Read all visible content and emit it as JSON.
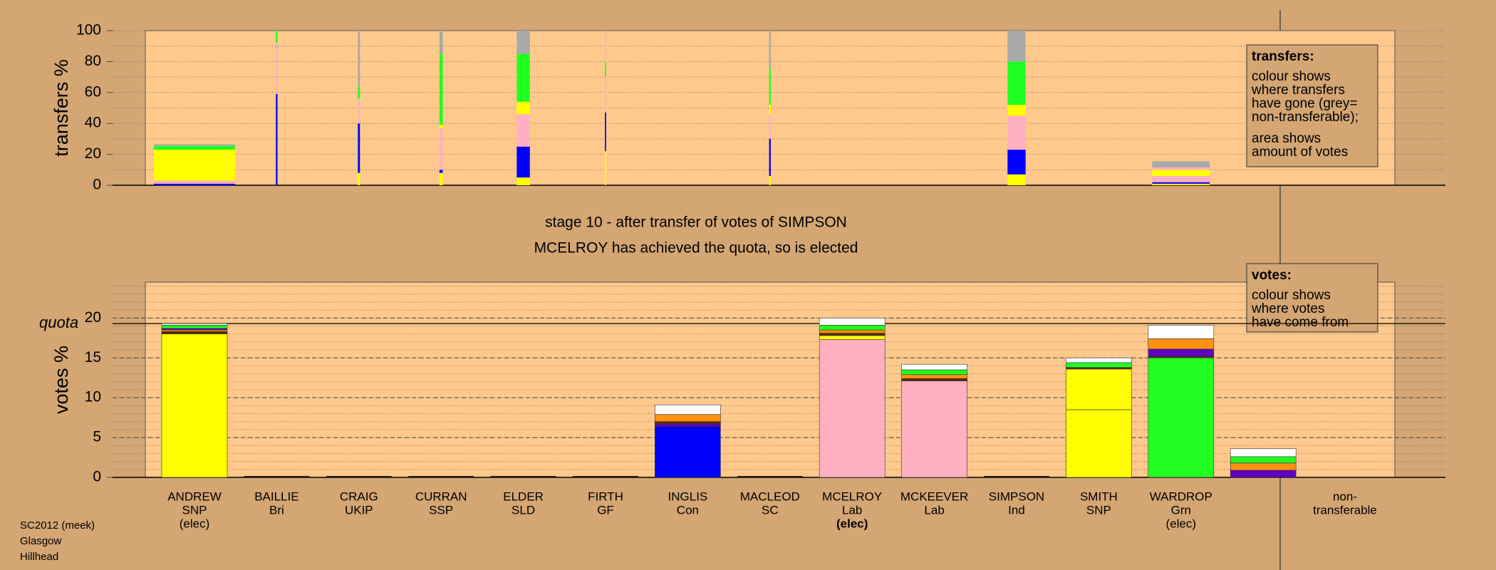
{
  "title": "stage 10 - after transfer of votes of SIMPSON",
  "subtitle": "MCELROY has achieved the quota, so is elected",
  "footer": [
    "SC2012 (meek)",
    "Glasgow",
    "Hillhead"
  ],
  "chart_data": [
    {
      "type": "stacked-bar-width",
      "ylabel": "transfers %",
      "ylim": [
        0,
        100
      ],
      "yticks": [
        0,
        20,
        40,
        60,
        80,
        100
      ],
      "grid": true,
      "minor_grid_step": 10,
      "note": {
        "title": "transfers:",
        "paragraphs": [
          [
            "colour shows",
            "where transfers",
            "have gone (grey=",
            "non-transferable);"
          ],
          [
            "area shows",
            "amount of votes"
          ]
        ]
      },
      "transfer_widths": [
        0.99,
        0.02,
        0.025,
        0.04,
        0.16,
        0.015,
        0,
        0.02,
        0,
        0,
        0.22,
        0,
        0.7,
        0
      ],
      "segments": [
        [
          {
            "color": "#0000ff",
            "value": 1
          },
          {
            "color": "#ffb0c0",
            "value": 2
          },
          {
            "color": "#ffff00",
            "value": 20
          },
          {
            "color": "#20ff20",
            "value": 2.5
          },
          {
            "color": "#a9a9a9",
            "value": 1
          }
        ],
        [
          {
            "color": "#0000ff",
            "value": 59
          },
          {
            "color": "#ffb0c0",
            "value": 33
          },
          {
            "color": "#20ff20",
            "value": 8
          }
        ],
        [
          {
            "color": "#ffff00",
            "value": 8
          },
          {
            "color": "#0000ff",
            "value": 32
          },
          {
            "color": "#ffb0c0",
            "value": 16
          },
          {
            "color": "#20ff20",
            "value": 8
          },
          {
            "color": "#a9a9a9",
            "value": 36
          }
        ],
        [
          {
            "color": "#ffff00",
            "value": 8
          },
          {
            "color": "#0000ff",
            "value": 2
          },
          {
            "color": "#ffb0c0",
            "value": 27
          },
          {
            "color": "#ffff00",
            "value": 2
          },
          {
            "color": "#20ff20",
            "value": 46
          },
          {
            "color": "#a9a9a9",
            "value": 15
          }
        ],
        [
          {
            "color": "#ffff00",
            "value": 5
          },
          {
            "color": "#0000ff",
            "value": 20
          },
          {
            "color": "#ffb0c0",
            "value": 21
          },
          {
            "color": "#ffff00",
            "value": 8
          },
          {
            "color": "#20ff20",
            "value": 31
          },
          {
            "color": "#a9a9a9",
            "value": 15
          }
        ],
        [
          {
            "color": "#ffff00",
            "value": 22
          },
          {
            "color": "#0000ff",
            "value": 25
          },
          {
            "color": "#ffb0c0",
            "value": 23
          },
          {
            "color": "#20ff20",
            "value": 10
          },
          {
            "color": "#ffb0c0",
            "value": 20
          }
        ],
        [],
        [
          {
            "color": "#ffff00",
            "value": 6
          },
          {
            "color": "#0000ff",
            "value": 24
          },
          {
            "color": "#ffb0c0",
            "value": 16
          },
          {
            "color": "#ffff00",
            "value": 6
          },
          {
            "color": "#20ff20",
            "value": 24
          },
          {
            "color": "#a9a9a9",
            "value": 24
          }
        ],
        [],
        [],
        [
          {
            "color": "#ffff00",
            "value": 7
          },
          {
            "color": "#0000ff",
            "value": 16
          },
          {
            "color": "#ffb0c0",
            "value": 22
          },
          {
            "color": "#ffff00",
            "value": 7
          },
          {
            "color": "#20ff20",
            "value": 28
          },
          {
            "color": "#a9a9a9",
            "value": 20
          }
        ],
        [],
        [
          {
            "color": "#ffff00",
            "value": 1
          },
          {
            "color": "#0000ff",
            "value": 1
          },
          {
            "color": "#ffb0c0",
            "value": 4
          },
          {
            "color": "#ffff00",
            "value": 4
          },
          {
            "color": "#ffb0c0",
            "value": 1.5
          },
          {
            "color": "#a9a9a9",
            "value": 4
          }
        ],
        []
      ]
    },
    {
      "type": "stacked-bar",
      "ylabel": "votes %",
      "ylim": [
        0,
        24.5
      ],
      "yticks": [
        0,
        5,
        10,
        15,
        20
      ],
      "grid": true,
      "minor_grid_step": 1,
      "quota": 19.3,
      "quota_label": "quota",
      "highlight": 8,
      "note": {
        "title": "votes:",
        "paragraphs": [
          [
            "colour shows",
            "where votes",
            "have come from"
          ]
        ]
      },
      "categories": [
        [
          "ANDREW",
          "SNP",
          "(elec)"
        ],
        [
          "BAILLIE",
          "Bri"
        ],
        [
          "CRAIG",
          "UKIP"
        ],
        [
          "CURRAN",
          "SSP"
        ],
        [
          "ELDER",
          "SLD"
        ],
        [
          "FIRTH",
          "GF"
        ],
        [
          "INGLIS",
          "Con"
        ],
        [
          "MACLEOD",
          "SC"
        ],
        [
          "MCELROY",
          "Lab",
          "(elec)"
        ],
        [
          "MCKEEVER",
          "Lab"
        ],
        [
          "SIMPSON",
          "Ind"
        ],
        [
          "SMITH",
          "SNP"
        ],
        [
          "WARDROP",
          "Grn",
          "(elec)"
        ],
        [
          "non-",
          "transferable"
        ]
      ],
      "segments": [
        [
          {
            "color": "#ffff00",
            "value": 18
          },
          {
            "color": "#5a2a10",
            "value": 0.3
          },
          {
            "color": "#ff9010",
            "value": 0.2
          },
          {
            "color": "#6000c0",
            "value": 0.2
          },
          {
            "color": "#20ff20",
            "value": 0.4
          },
          {
            "color": "#ffffff",
            "value": 0.2
          }
        ],
        [],
        [],
        [],
        [],
        [],
        [
          {
            "color": "#0000ff",
            "value": 6.4
          },
          {
            "color": "#6000c0",
            "value": 0.3
          },
          {
            "color": "#5a2a10",
            "value": 0.3
          },
          {
            "color": "#ff9010",
            "value": 0.9
          },
          {
            "color": "#ffffff",
            "value": 1.2
          }
        ],
        [],
        [
          {
            "color": "#ffb0c0",
            "value": 17.3
          },
          {
            "color": "#ffff00",
            "value": 0.5
          },
          {
            "color": "#5a2a10",
            "value": 0.3
          },
          {
            "color": "#ff9010",
            "value": 0.4
          },
          {
            "color": "#20ff20",
            "value": 0.6
          },
          {
            "color": "#ffffff",
            "value": 0.9
          }
        ],
        [
          {
            "color": "#ffb0c0",
            "value": 12.1
          },
          {
            "color": "#5a2a10",
            "value": 0.3
          },
          {
            "color": "#ff9010",
            "value": 0.5
          },
          {
            "color": "#20ff20",
            "value": 0.6
          },
          {
            "color": "#ffffff",
            "value": 0.7
          }
        ],
        [],
        [
          {
            "color": "#ffff00",
            "value": 8.5
          },
          {
            "color": "#ffff00",
            "value": 5.1
          },
          {
            "color": "#5a2a10",
            "value": 0.2
          },
          {
            "color": "#20ff20",
            "value": 0.6
          },
          {
            "color": "#ffffff",
            "value": 0.6
          }
        ],
        [
          {
            "color": "#20ff20",
            "value": 15
          },
          {
            "color": "#5a2a10",
            "value": 0.2
          },
          {
            "color": "#6000c0",
            "value": 0.9
          },
          {
            "color": "#ff9010",
            "value": 1.3
          },
          {
            "color": "#ffffff",
            "value": 1.7
          }
        ],
        [
          {
            "color": "#6000c0",
            "value": 0.9
          },
          {
            "color": "#ff9010",
            "value": 0.9
          },
          {
            "color": "#20ff20",
            "value": 0.8
          },
          {
            "color": "#ffffff",
            "value": 1.0
          }
        ]
      ]
    }
  ]
}
